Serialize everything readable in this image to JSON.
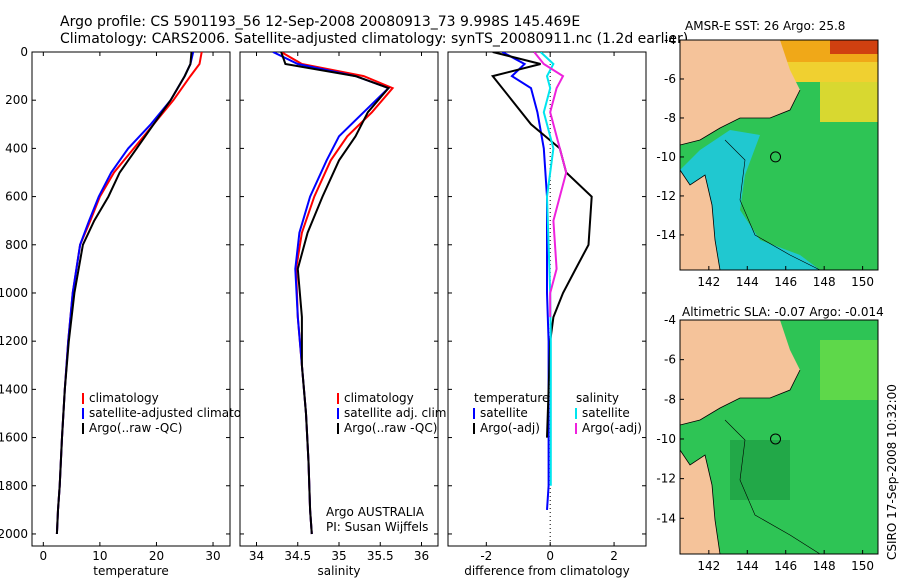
{
  "title_line1": "Argo profile: CS 5901193_56 12-Sep-2008 20080913_73 9.998S 145.469E",
  "title_line2": "Climatology: CARS2006. Satellite-adjusted climatology: synTS_20080911.nc (1.2d earlier)",
  "side_label": "CSIRO 17-Sep-2008 10:32:00",
  "colors": {
    "red": "#ff0000",
    "blue": "#0000ff",
    "black": "#000000",
    "cyan": "#00e5ee",
    "magenta": "#ee22dd",
    "land": "#f5c39a",
    "ocean": "#22bb55"
  },
  "chart_data": [
    {
      "type": "line",
      "panel": "temperature",
      "xlabel": "temperature",
      "xlim": [
        -2,
        33
      ],
      "ylim": [
        2050,
        0
      ],
      "xticks": [
        0,
        10,
        20,
        30
      ],
      "yticks": [
        0,
        200,
        400,
        600,
        800,
        1000,
        1200,
        1400,
        1600,
        1800,
        2000
      ],
      "legend": [
        "climatology",
        "satellite-adjusted climatology",
        "Argo(..raw -QC)"
      ],
      "series": [
        {
          "name": "climatology",
          "color": "#ff0000",
          "x": [
            28.0,
            27.6,
            26.0,
            23.0,
            19.5,
            16.0,
            12.5,
            10.0,
            8.3,
            6.5,
            5.2,
            4.4,
            3.8,
            3.3,
            2.9,
            2.6,
            2.4
          ],
          "y": [
            0,
            50,
            100,
            200,
            300,
            400,
            500,
            600,
            700,
            800,
            1000,
            1200,
            1400,
            1600,
            1800,
            1900,
            2000
          ]
        },
        {
          "name": "satellite-adjusted climatology",
          "color": "#0000ff",
          "x": [
            26.5,
            26.0,
            25.0,
            22.5,
            19.0,
            15.0,
            12.0,
            9.8,
            8.1,
            6.5,
            5.2,
            4.4,
            3.8,
            3.3,
            2.9,
            2.6,
            2.4
          ],
          "y": [
            0,
            50,
            100,
            200,
            300,
            400,
            500,
            600,
            700,
            800,
            1000,
            1200,
            1400,
            1600,
            1800,
            1900,
            2000
          ]
        },
        {
          "name": "Argo(..raw -QC)",
          "color": "#000000",
          "x": [
            26.2,
            26.0,
            25.0,
            22.5,
            19.5,
            16.5,
            13.5,
            11.5,
            9.0,
            7.0,
            5.5,
            4.5,
            3.8,
            3.3,
            2.9,
            2.6,
            2.4
          ],
          "y": [
            0,
            50,
            100,
            200,
            300,
            400,
            500,
            600,
            700,
            800,
            1000,
            1200,
            1400,
            1600,
            1800,
            1900,
            2000
          ]
        }
      ]
    },
    {
      "type": "line",
      "panel": "salinity",
      "xlabel": "salinity",
      "xlim": [
        33.8,
        36.2
      ],
      "ylim": [
        2050,
        0
      ],
      "xticks": [
        34,
        34.5,
        35,
        35.5,
        36
      ],
      "xticklabels": [
        "34",
        "34.5",
        "35",
        "35.5",
        "36"
      ],
      "legend": [
        "climatology",
        "satellite adj. clim.",
        "Argo(..raw -QC)"
      ],
      "credit": [
        "Argo AUSTRALIA",
        "PI: Susan Wijffels"
      ],
      "series": [
        {
          "name": "climatology",
          "color": "#ff0000",
          "x": [
            34.3,
            34.55,
            35.3,
            35.65,
            35.4,
            35.1,
            34.9,
            34.7,
            34.55,
            34.48,
            34.5,
            34.55,
            34.6,
            34.63,
            34.65,
            34.67
          ],
          "y": [
            0,
            50,
            100,
            150,
            250,
            350,
            450,
            600,
            750,
            900,
            1100,
            1300,
            1500,
            1700,
            1900,
            2000
          ]
        },
        {
          "name": "satellite adj. clim.",
          "color": "#0000ff",
          "x": [
            34.2,
            34.5,
            35.2,
            35.6,
            35.3,
            35.0,
            34.85,
            34.65,
            34.52,
            34.47,
            34.5,
            34.55,
            34.6,
            34.63,
            34.65,
            34.67
          ],
          "y": [
            0,
            50,
            100,
            150,
            250,
            350,
            450,
            600,
            750,
            900,
            1100,
            1300,
            1500,
            1700,
            1900,
            2000
          ]
        },
        {
          "name": "Argo(..raw -QC)",
          "color": "#000000",
          "x": [
            34.3,
            34.35,
            35.2,
            35.6,
            35.35,
            35.2,
            35.0,
            34.8,
            34.62,
            34.5,
            34.55,
            34.55,
            34.6,
            34.63,
            34.65,
            34.67
          ],
          "y": [
            0,
            50,
            100,
            150,
            250,
            350,
            450,
            600,
            750,
            900,
            1100,
            1300,
            1500,
            1700,
            1900,
            2000
          ]
        }
      ]
    },
    {
      "type": "line",
      "panel": "difference",
      "xlabel": "difference from climatology",
      "xlim": [
        -3.2,
        3.0
      ],
      "ylim": [
        2050,
        0
      ],
      "xticks": [
        -2,
        0,
        2
      ],
      "legend_temperature": [
        "temperature",
        "satellite",
        "Argo(-adj)"
      ],
      "legend_salinity": [
        "salinity",
        "satellite",
        "Argo(-adj)"
      ],
      "series": [
        {
          "name": "temperature satellite",
          "color": "#0000ff",
          "x": [
            -1.5,
            -0.8,
            -1.2,
            -0.6,
            -0.4,
            -0.2,
            -0.1,
            -0.1,
            -0.1,
            -0.05,
            -0.05,
            -0.05,
            -0.05,
            -0.1
          ],
          "y": [
            0,
            50,
            100,
            150,
            250,
            400,
            600,
            800,
            1000,
            1200,
            1400,
            1600,
            1800,
            1900
          ]
        },
        {
          "name": "temperature Argo(-adj)",
          "color": "#000000",
          "x": [
            -1.8,
            -0.3,
            -1.8,
            -1.2,
            -0.6,
            0.3,
            0.5,
            1.3,
            1.2,
            0.8,
            0.4,
            0.1,
            0.0,
            -0.05,
            -0.1
          ],
          "y": [
            0,
            50,
            100,
            200,
            300,
            400,
            500,
            600,
            800,
            900,
            1000,
            1100,
            1200,
            1400,
            1600
          ]
        },
        {
          "name": "salinity satellite",
          "color": "#00e5ee",
          "x": [
            -0.3,
            0.1,
            -0.1,
            0.0,
            -0.2,
            0.1,
            -0.1,
            -0.05,
            0.0,
            0.02,
            0.02,
            0.02,
            0.02
          ],
          "y": [
            0,
            50,
            100,
            150,
            250,
            400,
            600,
            800,
            1000,
            1200,
            1400,
            1600,
            1800
          ]
        },
        {
          "name": "salinity Argo(-adj)",
          "color": "#ee22dd",
          "x": [
            -0.5,
            -0.2,
            0.4,
            0.2,
            0.0,
            0.3,
            0.5,
            0.1,
            0.2,
            0.0,
            0.0
          ],
          "y": [
            0,
            50,
            100,
            150,
            250,
            400,
            500,
            700,
            900,
            1000,
            1100
          ]
        }
      ]
    },
    {
      "type": "heatmap",
      "panel": "sst-map",
      "title": "AMSR-E SST: 26 Argo: 25.8",
      "xticks": [
        142,
        144,
        146,
        148,
        150
      ],
      "yticks": [
        -4,
        -6,
        -8,
        -10,
        -12,
        -14
      ],
      "xlim": [
        140.5,
        150.8
      ],
      "ylim": [
        -15.8,
        -4
      ],
      "marker": {
        "lon": 145.469,
        "lat": -9.998
      }
    },
    {
      "type": "heatmap",
      "panel": "sla-map",
      "title": "Altimetric SLA: -0.07 Argo: -0.014",
      "xticks": [
        142,
        144,
        146,
        148,
        150
      ],
      "yticks": [
        -4,
        -6,
        -8,
        -10,
        -12,
        -14
      ],
      "xlim": [
        140.5,
        150.8
      ],
      "ylim": [
        -15.8,
        -4
      ],
      "marker": {
        "lon": 145.469,
        "lat": -9.998
      }
    }
  ]
}
